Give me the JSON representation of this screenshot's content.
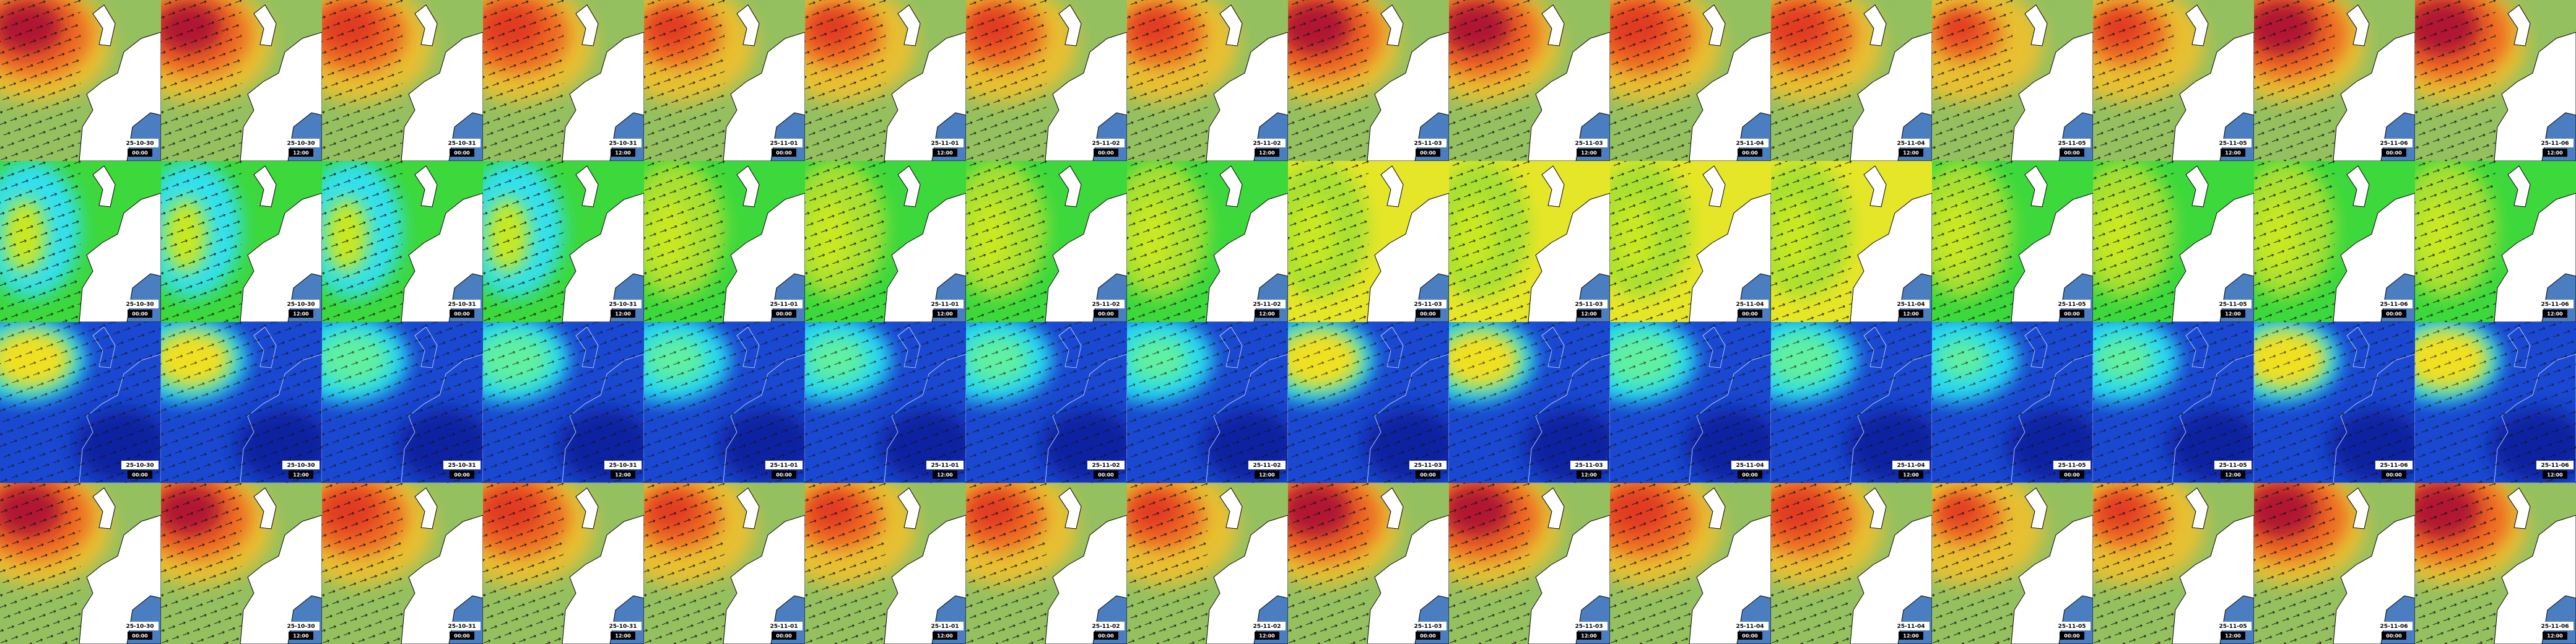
{
  "columns": [
    {
      "date": "25-10-30",
      "time": "00:00"
    },
    {
      "date": "25-10-30",
      "time": "12:00"
    },
    {
      "date": "25-10-31",
      "time": "00:00"
    },
    {
      "date": "25-10-31",
      "time": "12:00"
    },
    {
      "date": "25-11-01",
      "time": "00:00"
    },
    {
      "date": "25-11-01",
      "time": "12:00"
    },
    {
      "date": "25-11-02",
      "time": "00:00"
    },
    {
      "date": "25-11-02",
      "time": "12:00"
    },
    {
      "date": "25-11-03",
      "time": "00:00"
    },
    {
      "date": "25-11-03",
      "time": "12:00"
    },
    {
      "date": "25-11-04",
      "time": "00:00"
    },
    {
      "date": "25-11-04",
      "time": "12:00"
    },
    {
      "date": "25-11-05",
      "time": "00:00"
    },
    {
      "date": "25-11-05",
      "time": "12:00"
    },
    {
      "date": "25-11-06",
      "time": "00:00"
    },
    {
      "date": "25-11-06",
      "time": "12:00"
    }
  ]
}
